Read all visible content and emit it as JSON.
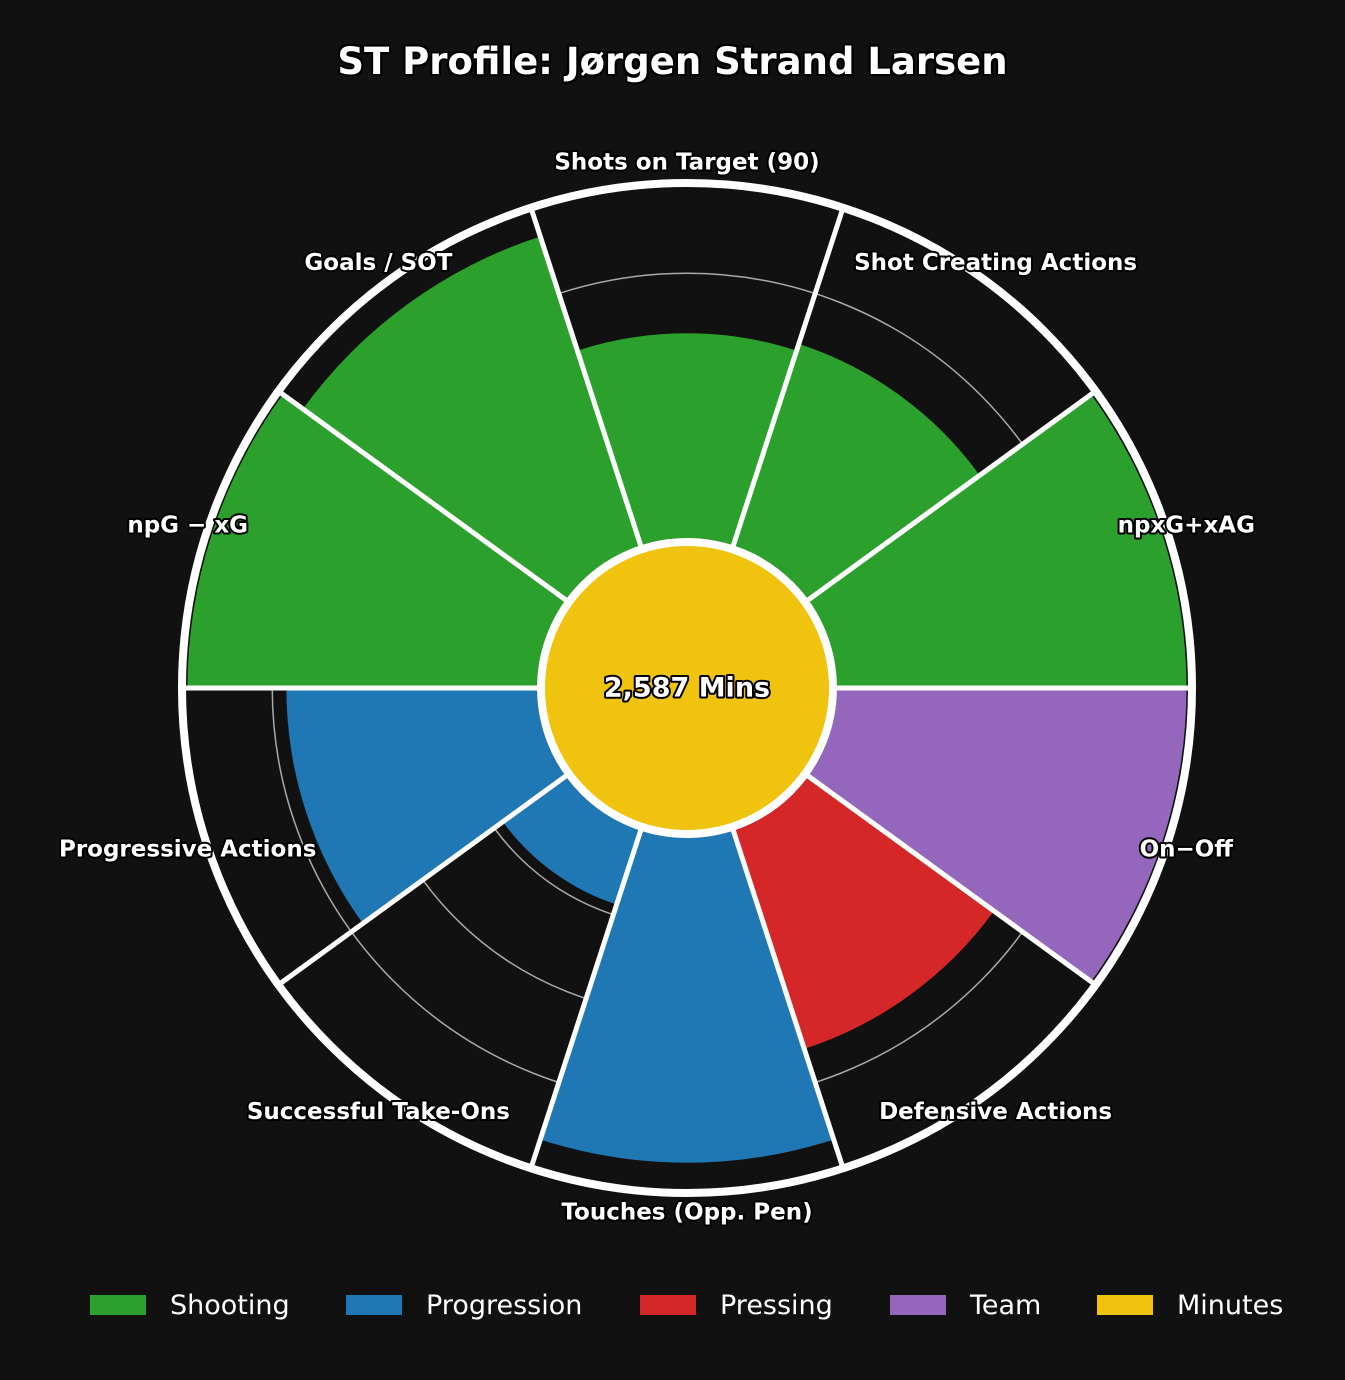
{
  "chart_data": {
    "type": "polar-bar",
    "title": "ST Profile: Jørgen Strand Larsen",
    "center_label": "2,587 Mins",
    "center_color": "#f0c30f",
    "rlim": [
      0,
      100
    ],
    "grid_rings": [
      25,
      50,
      75
    ],
    "categories": [
      {
        "label": "Shots on Target (90)",
        "value": 58,
        "group": "Shooting"
      },
      {
        "label": "Shot Creating Actions",
        "value": 60,
        "group": "Shooting"
      },
      {
        "label": "npxG+xAG",
        "value": 99,
        "group": "Shooting"
      },
      {
        "label": "On−Off",
        "value": 99,
        "group": "Team"
      },
      {
        "label": "Defensive Actions",
        "value": 65,
        "group": "Pressing"
      },
      {
        "label": "Touches (Opp. Pen)",
        "value": 92,
        "group": "Progression"
      },
      {
        "label": "Successful Take-Ons",
        "value": 22,
        "group": "Progression"
      },
      {
        "label": "Progressive Actions",
        "value": 71,
        "group": "Progression"
      },
      {
        "label": "npG − xG",
        "value": 99,
        "group": "Shooting"
      },
      {
        "label": "Goals / SOT",
        "value": 92,
        "group": "Shooting"
      }
    ],
    "legend": [
      {
        "name": "Shooting",
        "color": "#2ca02c"
      },
      {
        "name": "Progression",
        "color": "#1f77b4"
      },
      {
        "name": "Pressing",
        "color": "#d62728"
      },
      {
        "name": "Team",
        "color": "#9467bd"
      },
      {
        "name": "Minutes",
        "color": "#f0c30f"
      }
    ],
    "legend_placement": "bottom"
  }
}
